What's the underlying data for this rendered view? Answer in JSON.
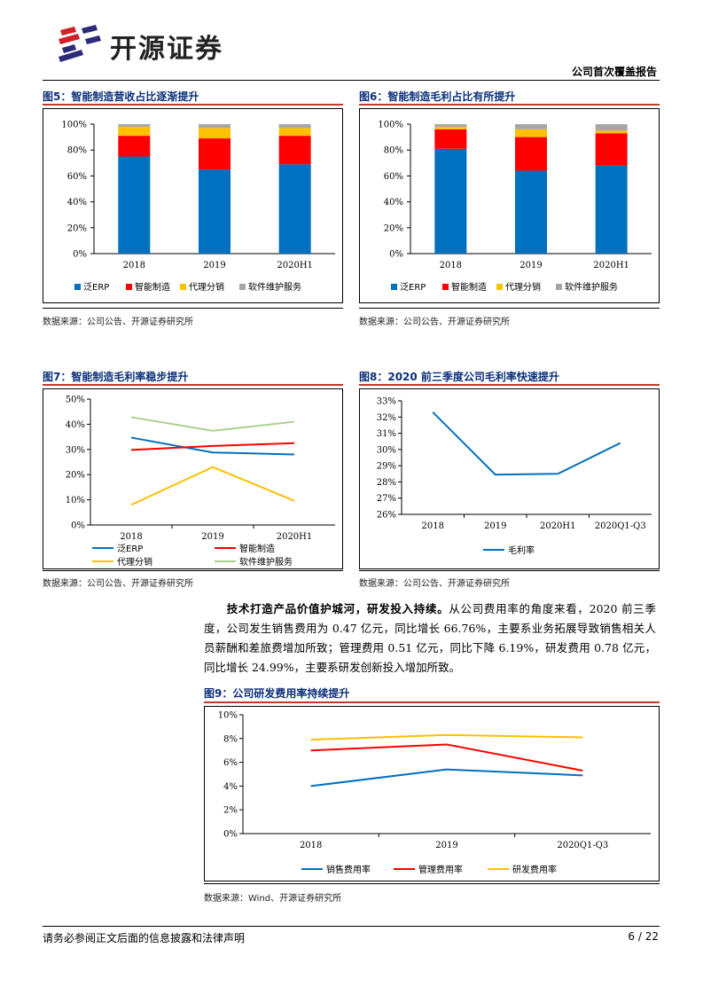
{
  "header": {
    "logo_text": "开源证券",
    "report_type": "公司首次覆盖报告"
  },
  "figures": {
    "fig5": {
      "title": "图5：智能制造营收占比逐渐提升",
      "source": "数据来源：公司公告、开源证券研究所",
      "chart_data": {
        "type": "bar",
        "stacked": true,
        "categories": [
          "2018",
          "2019",
          "2020H1"
        ],
        "series": [
          {
            "name": "泛ERP",
            "values": [
              75,
              65,
              69
            ]
          },
          {
            "name": "智能制造",
            "values": [
              16,
              24,
              22
            ]
          },
          {
            "name": "代理分销",
            "values": [
              7,
              8,
              6
            ]
          },
          {
            "name": "软件维护服务",
            "values": [
              2,
              3,
              3
            ]
          }
        ],
        "y_ticks": [
          "0%",
          "20%",
          "40%",
          "60%",
          "80%",
          "100%"
        ],
        "ylim": [
          0,
          100
        ]
      }
    },
    "fig6": {
      "title": "图6：智能制造毛利占比有所提升",
      "source": "数据来源：公司公告、开源证券研究所",
      "chart_data": {
        "type": "bar",
        "stacked": true,
        "categories": [
          "2018",
          "2019",
          "2020H1"
        ],
        "series": [
          {
            "name": "泛ERP",
            "values": [
              81,
              64,
              68
            ]
          },
          {
            "name": "智能制造",
            "values": [
              15,
              26,
              25
            ]
          },
          {
            "name": "代理分销",
            "values": [
              2,
              6,
              2
            ]
          },
          {
            "name": "软件维护服务",
            "values": [
              2,
              4,
              5
            ]
          }
        ],
        "y_ticks": [
          "0%",
          "20%",
          "40%",
          "60%",
          "80%",
          "100%"
        ],
        "ylim": [
          0,
          100
        ]
      }
    },
    "fig7": {
      "title": "图7：智能制造毛利率稳步提升",
      "source": "数据来源：公司公告、开源证券研究所",
      "chart_data": {
        "type": "line",
        "categories": [
          "2018",
          "2019",
          "2020H1"
        ],
        "series": [
          {
            "name": "泛ERP",
            "values": [
              34.7,
              28.8,
              28.0
            ]
          },
          {
            "name": "智能制造",
            "values": [
              29.8,
              31.4,
              32.5
            ]
          },
          {
            "name": "代理分销",
            "values": [
              8.0,
              23.0,
              9.6
            ]
          },
          {
            "name": "软件维护服务",
            "values": [
              42.8,
              37.4,
              41.0
            ]
          }
        ],
        "y_ticks": [
          "0%",
          "10%",
          "20%",
          "30%",
          "40%",
          "50%"
        ],
        "ylim": [
          0,
          50
        ]
      }
    },
    "fig8": {
      "title": "图8：2020 前三季度公司毛利率快速提升",
      "source": "数据来源：公司公告、开源证券研究所",
      "chart_data": {
        "type": "line",
        "categories": [
          "2018",
          "2019",
          "2020H1",
          "2020Q1-Q3"
        ],
        "series": [
          {
            "name": "毛利率",
            "values": [
              32.3,
              28.45,
              28.5,
              30.4
            ]
          }
        ],
        "y_ticks": [
          "26%",
          "27%",
          "28%",
          "29%",
          "30%",
          "31%",
          "32%",
          "33%"
        ],
        "ylim": [
          26,
          33
        ]
      }
    },
    "fig9": {
      "title": "图9：公司研发费用率持续提升",
      "source": "数据来源：Wind、开源证券研究所",
      "chart_data": {
        "type": "line",
        "categories": [
          "2018",
          "2019",
          "2020Q1-Q3"
        ],
        "series": [
          {
            "name": "销售费用率",
            "values": [
              4.0,
              5.4,
              4.9
            ]
          },
          {
            "name": "管理费用率",
            "values": [
              7.0,
              7.5,
              5.3
            ]
          },
          {
            "name": "研发费用率",
            "values": [
              7.9,
              8.3,
              8.1
            ]
          }
        ],
        "y_ticks": [
          "0%",
          "2%",
          "4%",
          "6%",
          "8%",
          "10%"
        ],
        "ylim": [
          0,
          10
        ]
      }
    }
  },
  "paragraph": {
    "bold": "技术打造产品价值护城河，研发投入持续。",
    "body": "从公司费用率的角度来看，2020 前三季度，公司发生销售费用为 0.47 亿元，同比增长 66.76%，主要系业务拓展导致销售相关人员薪酬和差旅费增加所致；管理费用 0.51 亿元，同比下降 6.19%，研发费用 0.78 亿元，同比增长 24.99%，主要系研发创新投入增加所致。"
  },
  "footer": {
    "disclaimer": "请务必参阅正文后面的信息披露和法律声明",
    "page": "6 / 22"
  },
  "colors": {
    "series_stack": [
      "#0070c0",
      "#ff0000",
      "#ffc000",
      "#a6a6a6"
    ],
    "fig7_lines": [
      "#0070c0",
      "#ff0000",
      "#ffc000",
      "#a9d18e"
    ],
    "fig8_line": "#0070c0",
    "fig9_lines": [
      "#0070c0",
      "#ff0000",
      "#ffc000"
    ],
    "title_blue": "#0b2f7a",
    "accent_red": "#c0392b"
  }
}
